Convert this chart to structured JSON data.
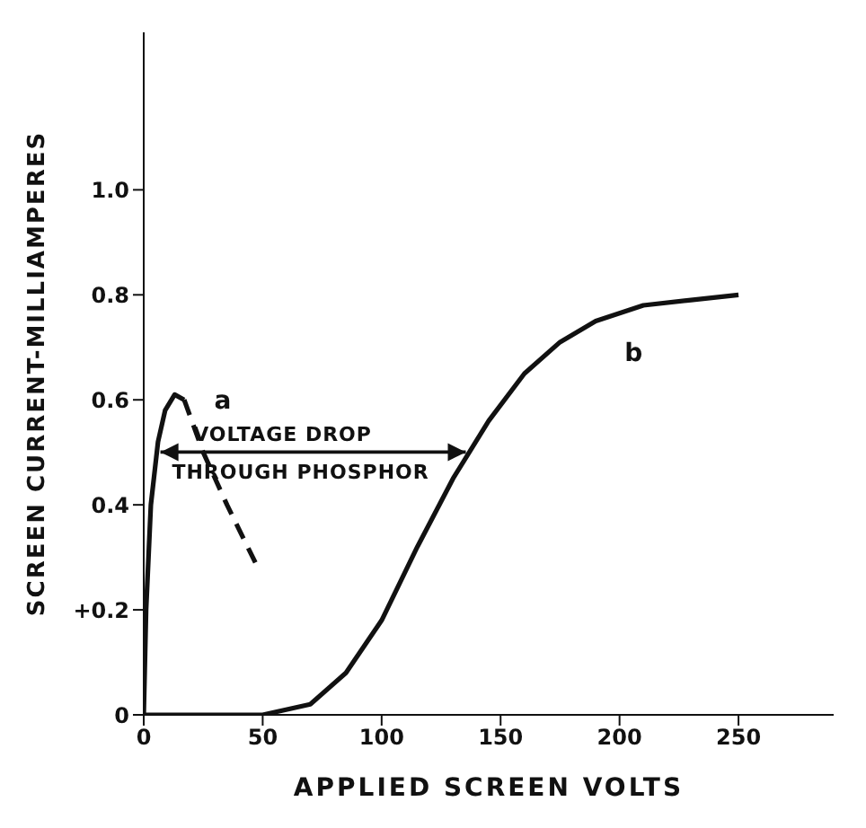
{
  "chart_data": {
    "type": "line",
    "xlabel": "APPLIED SCREEN VOLTS",
    "ylabel": "SCREEN CURRENT-MILLIAMPERES",
    "xlim": [
      0,
      290
    ],
    "xticks": [
      0,
      50,
      100,
      150,
      200,
      250
    ],
    "ylim": [
      0,
      1.3
    ],
    "yticks": [
      0,
      {
        "value": 0.2,
        "label": "+0.2"
      },
      0.4,
      0.6,
      0.8,
      {
        "value": 1,
        "label": "1.0"
      }
    ],
    "series": [
      {
        "name": "a",
        "color": "#111111",
        "line_style": "solid",
        "x": [
          0,
          1,
          3,
          6,
          9,
          13,
          17
        ],
        "values": [
          0,
          0.2,
          0.4,
          0.52,
          0.58,
          0.61,
          0.6
        ]
      },
      {
        "color": "#111111",
        "line_style": "dashed",
        "x": [
          17,
          25,
          35,
          48
        ],
        "values": [
          0.6,
          0.5,
          0.4,
          0.28
        ]
      },
      {
        "name": "b",
        "color": "#111111",
        "line_style": "solid",
        "x": [
          0,
          50,
          70,
          85,
          100,
          115,
          130,
          145,
          160,
          175,
          190,
          210,
          230,
          250
        ],
        "values": [
          0,
          0,
          0.02,
          0.08,
          0.18,
          0.32,
          0.45,
          0.56,
          0.65,
          0.71,
          0.75,
          0.78,
          0.79,
          0.8
        ]
      }
    ],
    "annotations": [
      "VOLTAGE DROP THROUGH PHOSPHOR"
    ],
    "legend": false,
    "grid": false
  }
}
